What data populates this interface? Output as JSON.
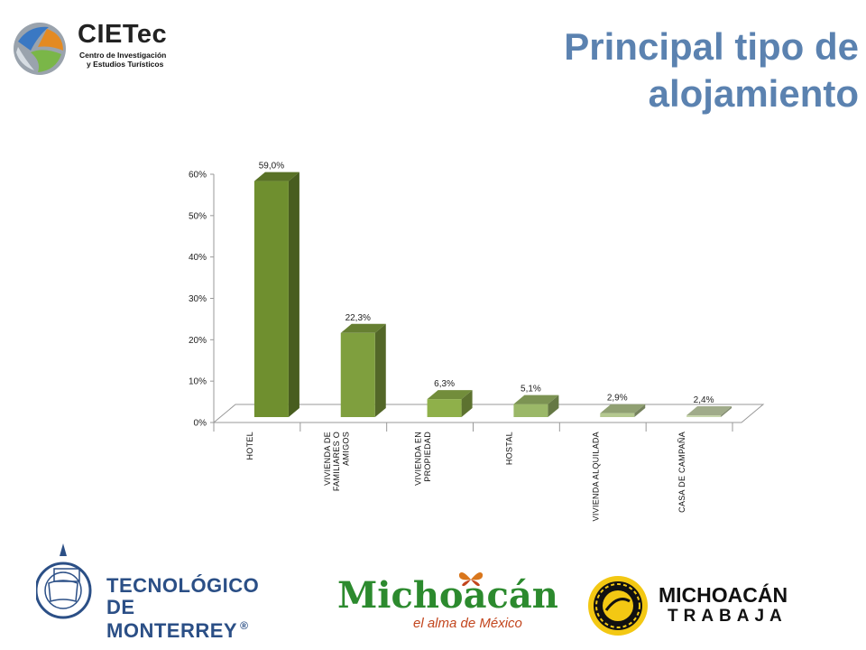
{
  "slide": {
    "title_line1": "Principal tipo de",
    "title_line2": "alojamiento"
  },
  "logos": {
    "cietec_name": "CIETec",
    "cietec_sub1": "Centro de Investigación",
    "cietec_sub2": "y Estudios Turísticos",
    "tec_line1": "TECNOLÓGICO",
    "tec_line2": "DE MONTERREY",
    "tec_mark": "®",
    "michoacan_word": "Michoacán",
    "michoacan_tag": "el alma de México",
    "trabaja_line1": "MICHOACÁN",
    "trabaja_line2": "TRABAJA"
  },
  "chart_data": {
    "type": "bar",
    "categories": [
      [
        "HOTEL"
      ],
      [
        "VIVIENDA DE",
        "FAMILIARES O",
        "AMIGOS"
      ],
      [
        "VIVIENDA EN",
        "PROPIEDAD"
      ],
      [
        "HOSTAL"
      ],
      [
        "VIVIENDA ALQUILADA"
      ],
      [
        "CASA DE CAMPAÑA"
      ]
    ],
    "values": [
      59.0,
      22.3,
      6.3,
      5.1,
      2.9,
      2.4
    ],
    "data_labels": [
      "59,0%",
      "22,3%",
      "6,3%",
      "5,1%",
      "2,9%",
      "2,4%"
    ],
    "bar_colors": [
      "#6f8f2f",
      "#7f9f3e",
      "#8fb04a",
      "#9bb868",
      "#b4c88f",
      "#c8d6ad"
    ],
    "yticks": [
      "0%",
      "10%",
      "20%",
      "30%",
      "40%",
      "50%",
      "60%"
    ],
    "ylim": [
      0,
      60
    ],
    "grid": false,
    "legend": "none",
    "title": "",
    "xlabel": "",
    "ylabel": ""
  }
}
